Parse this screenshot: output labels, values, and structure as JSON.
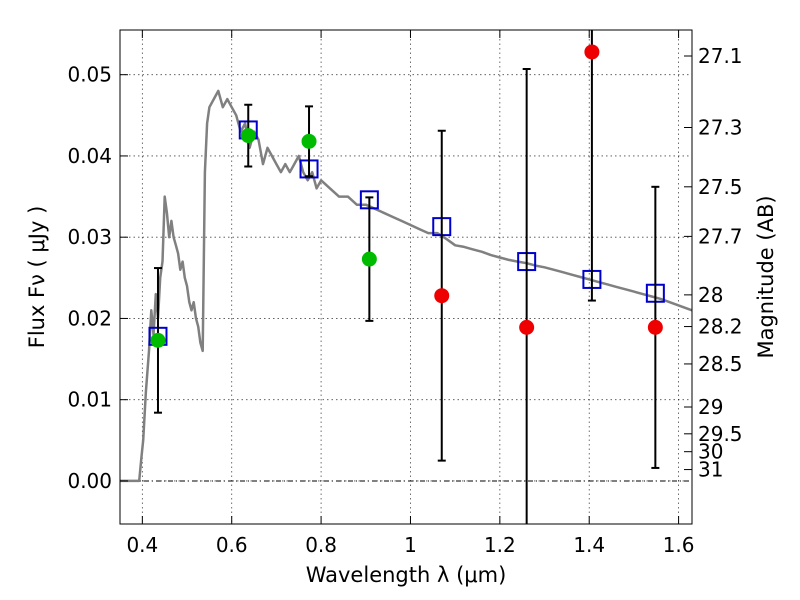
{
  "chart_data": {
    "type": "scatter",
    "title": "",
    "xlabel": "Wavelength  λ (μm)",
    "ylabel": "Flux  Fν  ( μJy )",
    "ylabel_right": "Magnitude (AB)",
    "xlim": [
      0.35,
      1.63
    ],
    "ylim": [
      -0.0053,
      0.0555
    ],
    "x_ticks": [
      0.4,
      0.6,
      0.8,
      1.0,
      1.2,
      1.4,
      1.6
    ],
    "x_tick_labels": [
      "0.4",
      "0.6",
      "0.8",
      "1",
      "1.2",
      "1.4",
      "1.6"
    ],
    "y_ticks": [
      0.0,
      0.01,
      0.02,
      0.03,
      0.04,
      0.05
    ],
    "y_tick_labels": [
      "0.00",
      "0.01",
      "0.02",
      "0.03",
      "0.04",
      "0.05"
    ],
    "right_ticks": [
      {
        "label": "27.1",
        "flux": 0.0523
      },
      {
        "label": "27.3",
        "flux": 0.0435
      },
      {
        "label": "27.5",
        "flux": 0.0362
      },
      {
        "label": "27.7",
        "flux": 0.0301
      },
      {
        "label": "28",
        "flux": 0.0229
      },
      {
        "label": "28.2",
        "flux": 0.019
      },
      {
        "label": "28.5",
        "flux": 0.0144
      },
      {
        "label": "29",
        "flux": 0.0091
      },
      {
        "label": "29.5",
        "flux": 0.0058
      },
      {
        "label": "30",
        "flux": 0.0036
      },
      {
        "label": "31",
        "flux": 0.0014
      }
    ],
    "grid": true,
    "series": [
      {
        "kind": "line",
        "color": "#808080",
        "x": [
          0.35,
          0.393,
          0.398,
          0.402,
          0.408,
          0.415,
          0.42,
          0.425,
          0.43,
          0.435,
          0.44,
          0.445,
          0.45,
          0.455,
          0.46,
          0.465,
          0.47,
          0.475,
          0.48,
          0.485,
          0.49,
          0.495,
          0.5,
          0.505,
          0.51,
          0.515,
          0.52,
          0.525,
          0.53,
          0.535,
          0.54,
          0.545,
          0.55,
          0.56,
          0.57,
          0.58,
          0.59,
          0.6,
          0.61,
          0.62,
          0.63,
          0.64,
          0.65,
          0.66,
          0.67,
          0.68,
          0.69,
          0.7,
          0.71,
          0.72,
          0.73,
          0.74,
          0.75,
          0.76,
          0.77,
          0.78,
          0.79,
          0.8,
          0.82,
          0.84,
          0.86,
          0.88,
          0.9,
          0.92,
          0.94,
          0.96,
          0.98,
          1.0,
          1.02,
          1.04,
          1.06,
          1.08,
          1.1,
          1.12,
          1.14,
          1.16,
          1.18,
          1.2,
          1.22,
          1.24,
          1.26,
          1.28,
          1.3,
          1.32,
          1.34,
          1.36,
          1.38,
          1.4,
          1.42,
          1.44,
          1.46,
          1.48,
          1.5,
          1.52,
          1.54,
          1.56,
          1.58,
          1.6,
          1.62,
          1.63
        ],
        "y": [
          0.0,
          0.0,
          0.003,
          0.005,
          0.011,
          0.016,
          0.021,
          0.018,
          0.023,
          0.02,
          0.025,
          0.027,
          0.035,
          0.033,
          0.03,
          0.032,
          0.03,
          0.029,
          0.028,
          0.026,
          0.027,
          0.025,
          0.024,
          0.022,
          0.021,
          0.022,
          0.02,
          0.019,
          0.017,
          0.016,
          0.038,
          0.044,
          0.046,
          0.047,
          0.048,
          0.046,
          0.047,
          0.046,
          0.045,
          0.043,
          0.044,
          0.041,
          0.043,
          0.042,
          0.039,
          0.041,
          0.04,
          0.039,
          0.038,
          0.039,
          0.038,
          0.039,
          0.04,
          0.038,
          0.037,
          0.038,
          0.036,
          0.037,
          0.036,
          0.035,
          0.035,
          0.034,
          0.034,
          0.0335,
          0.033,
          0.0325,
          0.032,
          0.0315,
          0.031,
          0.0305,
          0.0305,
          0.0298,
          0.029,
          0.0288,
          0.0285,
          0.0282,
          0.0278,
          0.0275,
          0.0272,
          0.027,
          0.0268,
          0.0265,
          0.0263,
          0.026,
          0.0257,
          0.0254,
          0.0251,
          0.0248,
          0.0245,
          0.0242,
          0.0239,
          0.0236,
          0.0233,
          0.023,
          0.0227,
          0.0224,
          0.022,
          0.0216,
          0.0212,
          0.021
        ]
      },
      {
        "kind": "open-square",
        "color": "#0000cc",
        "x": [
          0.435,
          0.637,
          0.773,
          0.908,
          1.07,
          1.26,
          1.406,
          1.548
        ],
        "y": [
          0.0178,
          0.0432,
          0.0384,
          0.0346,
          0.0313,
          0.027,
          0.0248,
          0.0231
        ]
      },
      {
        "kind": "filled-circle",
        "color": "#00bb00",
        "x": [
          0.435,
          0.637,
          0.773,
          0.908
        ],
        "y": [
          0.0173,
          0.0425,
          0.0418,
          0.0273
        ],
        "err": [
          0.0089,
          0.0038,
          0.0043,
          0.0076
        ]
      },
      {
        "kind": "filled-circle",
        "color": "#ee0000",
        "x": [
          1.07,
          1.26,
          1.406,
          1.548
        ],
        "y": [
          0.0228,
          0.0189,
          0.0528,
          0.0189
        ],
        "err": [
          0.0203,
          0.0318,
          0.0306,
          0.0173
        ]
      }
    ]
  }
}
